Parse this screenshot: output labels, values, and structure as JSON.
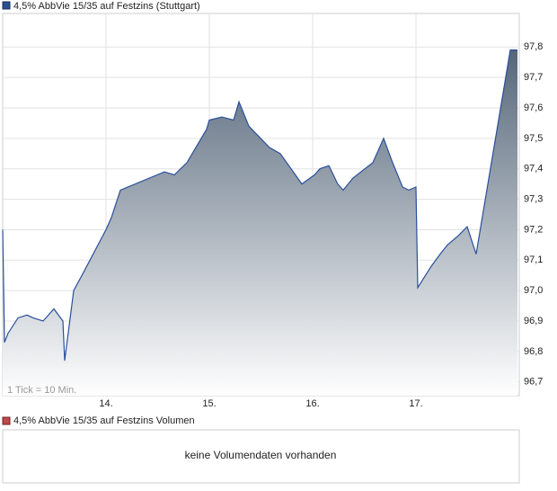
{
  "chart_data": {
    "type": "line",
    "annotation": "1 Tick = 10 Min.",
    "xlim": [
      13,
      18
    ],
    "xticks": [
      {
        "value": 14,
        "label": "14."
      },
      {
        "value": 15,
        "label": "15."
      },
      {
        "value": 16,
        "label": "16."
      },
      {
        "value": 17,
        "label": "17."
      }
    ],
    "ylim": [
      96.655,
      97.91
    ],
    "yticks": [
      {
        "value": 96.7,
        "label": "96,7"
      },
      {
        "value": 96.8,
        "label": "96,8"
      },
      {
        "value": 96.9,
        "label": "96,9"
      },
      {
        "value": 97.0,
        "label": "97,0"
      },
      {
        "value": 97.1,
        "label": "97,1"
      },
      {
        "value": 97.2,
        "label": "97,2"
      },
      {
        "value": 97.3,
        "label": "97,3"
      },
      {
        "value": 97.4,
        "label": "97,4"
      },
      {
        "value": 97.5,
        "label": "97,5"
      },
      {
        "value": 97.6,
        "label": "97,6"
      },
      {
        "value": 97.7,
        "label": "97,7"
      },
      {
        "value": 97.8,
        "label": "97,8"
      }
    ],
    "grid": true,
    "x": [
      13.0,
      13.017,
      13.052,
      13.148,
      13.235,
      13.296,
      13.391,
      13.496,
      13.583,
      13.6,
      13.687,
      13.783,
      14.0,
      14.052,
      14.139,
      14.565,
      14.661,
      14.783,
      14.974,
      15.0,
      15.122,
      15.235,
      15.287,
      15.383,
      15.496,
      15.583,
      15.687,
      15.896,
      16.017,
      16.07,
      16.157,
      16.243,
      16.296,
      16.391,
      16.583,
      16.687,
      16.774,
      16.87,
      16.93,
      17.0,
      17.017,
      17.148,
      17.235,
      17.304,
      17.409,
      17.496,
      17.583,
      17.913,
      17.983
    ],
    "series": [
      {
        "name": "4,5% AbbVie 15/35 auf Festzins (Stuttgart)",
        "color": "#2a4f9a",
        "values": [
          97.2,
          96.83,
          96.86,
          96.91,
          96.92,
          96.91,
          96.9,
          96.94,
          96.9,
          96.77,
          97.0,
          97.06,
          97.2,
          97.24,
          97.33,
          97.39,
          97.38,
          97.42,
          97.53,
          97.56,
          97.57,
          97.56,
          97.62,
          97.54,
          97.5,
          97.47,
          97.45,
          97.35,
          97.38,
          97.4,
          97.41,
          97.35,
          97.33,
          97.37,
          97.42,
          97.5,
          97.42,
          97.34,
          97.33,
          97.34,
          97.01,
          97.08,
          97.12,
          97.15,
          97.18,
          97.21,
          97.12,
          97.79,
          97.79
        ]
      }
    ]
  },
  "volume_panel": {
    "legend": "4,5% AbbVie 15/35 auf Festzins Volumen",
    "color": "#c04a4a",
    "message": "keine Volumendaten vorhanden"
  }
}
